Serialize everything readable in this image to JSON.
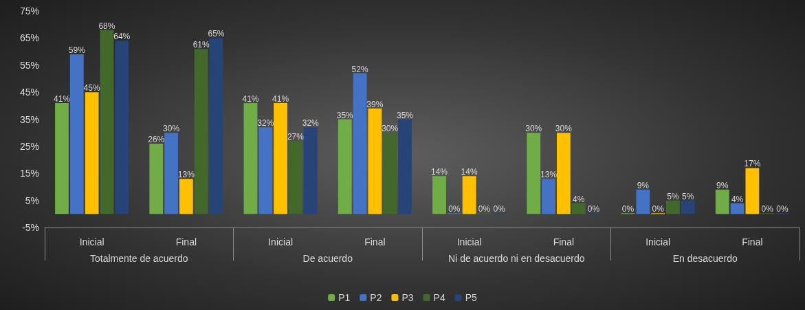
{
  "chart_data": {
    "type": "bar",
    "categories": [
      "Inicial",
      "Final",
      "Inicial",
      "Final",
      "Inicial",
      "Final",
      "Inicial",
      "Final"
    ],
    "annotations": [
      "Totalmente de acuerdo",
      "De acuerdo",
      "Ni de acuerdo ni en desacuerdo",
      "En desacuerdo"
    ],
    "series": [
      {
        "name": "P1",
        "color": "#70ad47",
        "values": [
          41,
          26,
          41,
          35,
          14,
          30,
          0,
          9
        ],
        "value_labels": [
          "41%",
          "26%",
          "41%",
          "35%",
          "14%",
          "30%",
          "0%",
          "9%"
        ]
      },
      {
        "name": "P2",
        "color": "#4472c4",
        "values": [
          59,
          30,
          32,
          52,
          0,
          13,
          9,
          4
        ],
        "value_labels": [
          "59%",
          "30%",
          "32%",
          "52%",
          "0%",
          "13%",
          "9%",
          "4%"
        ]
      },
      {
        "name": "P3",
        "color": "#ffc000",
        "values": [
          45,
          13,
          41,
          39,
          14,
          30,
          0,
          17
        ],
        "value_labels": [
          "45%",
          "13%",
          "41%",
          "39%",
          "14%",
          "30%",
          "0%",
          "17%"
        ]
      },
      {
        "name": "P4",
        "color": "#43682b",
        "values": [
          68,
          61,
          27,
          30,
          0,
          4,
          5,
          0
        ],
        "value_labels": [
          "68%",
          "61%",
          "27%",
          "30%",
          "0%",
          "4%",
          "5%",
          "0%"
        ]
      },
      {
        "name": "P5",
        "color": "#264478",
        "values": [
          64,
          65,
          32,
          35,
          0,
          0,
          5,
          0
        ],
        "value_labels": [
          "64%",
          "65%",
          "32%",
          "35%",
          "0%",
          "0%",
          "5%",
          "0%"
        ]
      }
    ],
    "ylim": [
      -5,
      75
    ],
    "yticks": [
      {
        "value": -5,
        "label": "-5%"
      },
      {
        "value": 5,
        "label": "5%"
      },
      {
        "value": 15,
        "label": "15%"
      },
      {
        "value": 25,
        "label": "25%"
      },
      {
        "value": 35,
        "label": "35%"
      },
      {
        "value": 45,
        "label": "45%"
      },
      {
        "value": 55,
        "label": "55%"
      },
      {
        "value": 65,
        "label": "65%"
      },
      {
        "value": 75,
        "label": "75%"
      }
    ],
    "grid": false,
    "legend": "bottom"
  }
}
